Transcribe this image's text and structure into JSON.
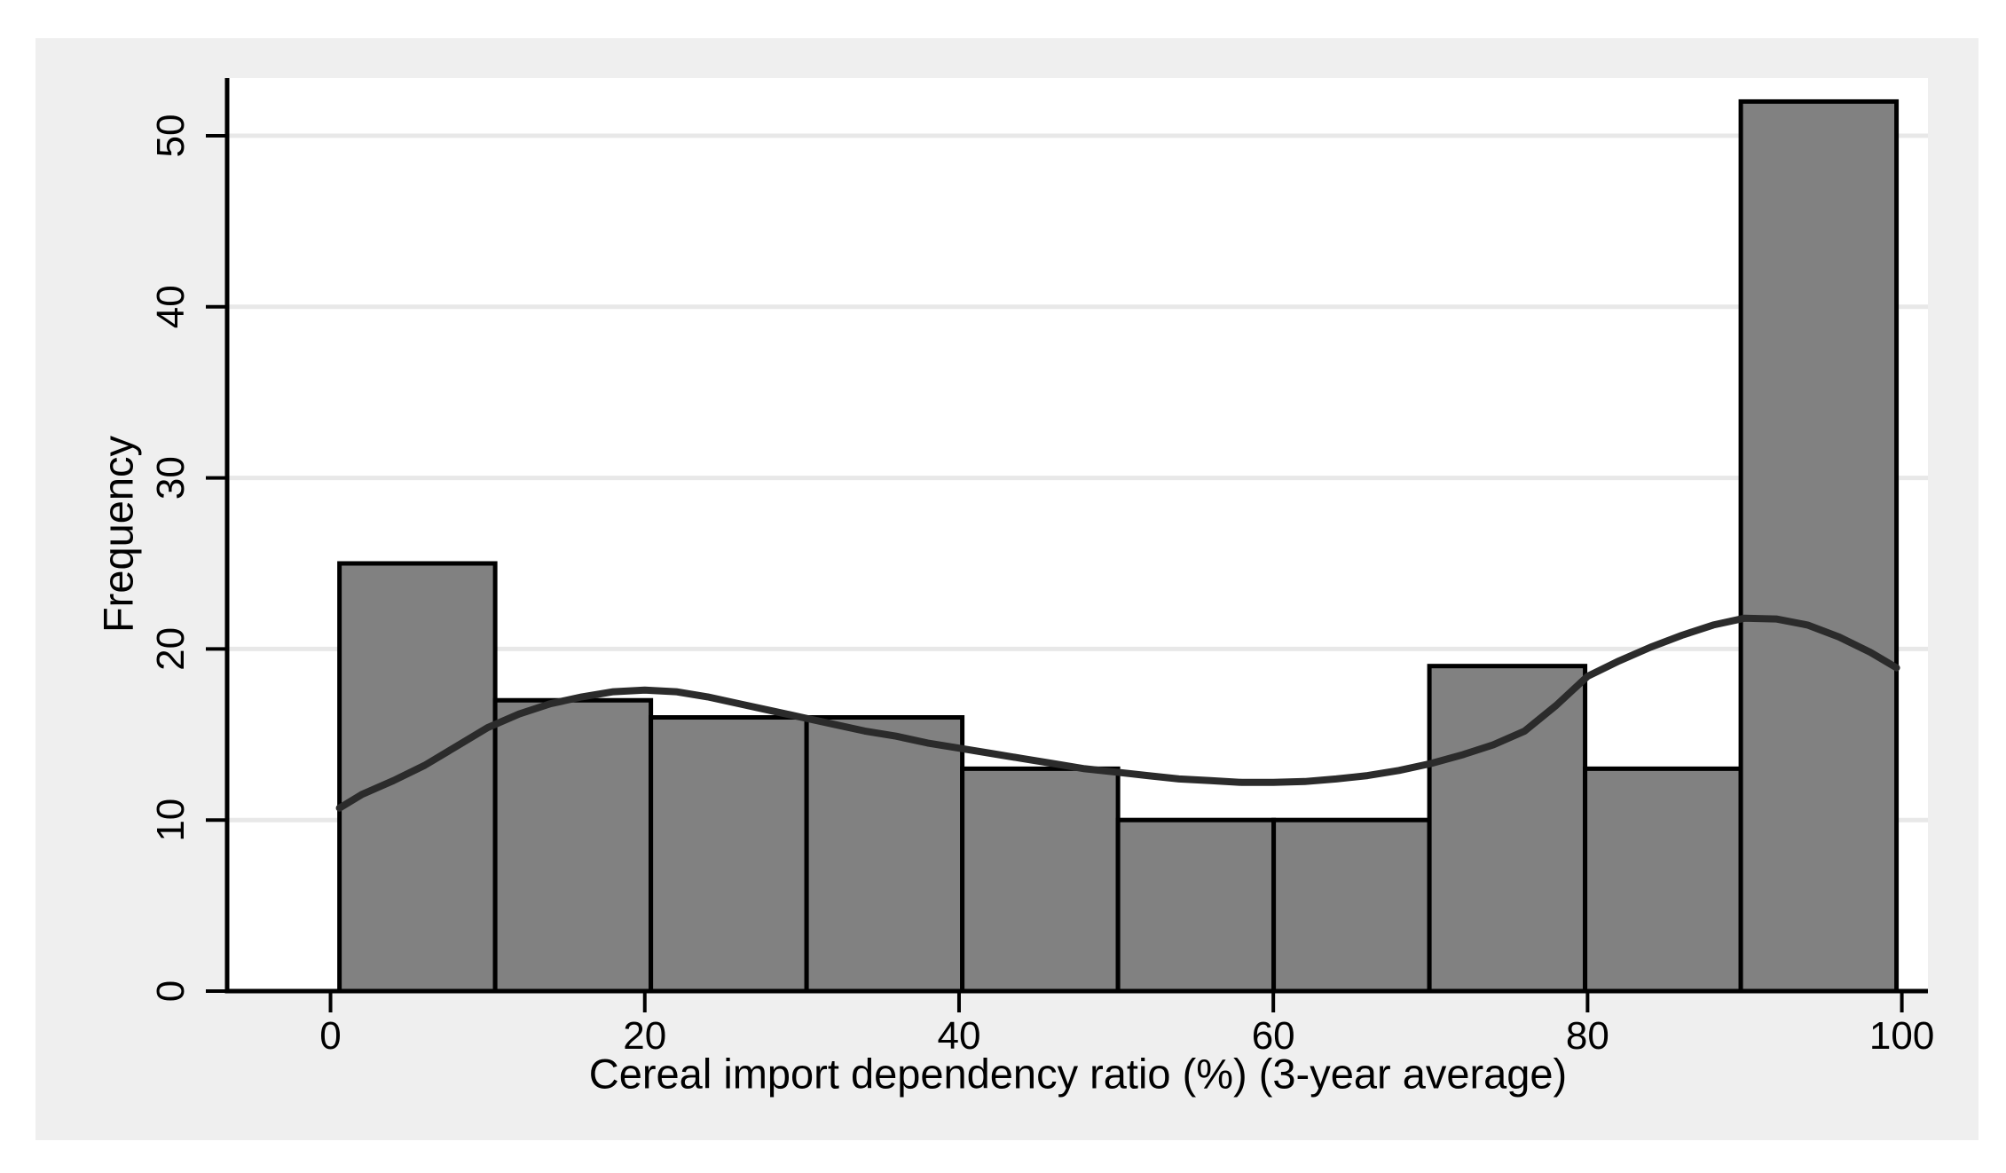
{
  "figure": {
    "kind": "stata-style histogram with kernel density overlay"
  },
  "chart_data": {
    "type": "bar",
    "subtype": "histogram_with_density",
    "title": "",
    "xlabel": "Cereal import dependency ratio (%) (3-year average)",
    "ylabel": "Frequency",
    "x_ticks": [
      0,
      20,
      40,
      60,
      80,
      100
    ],
    "y_ticks": [
      0,
      10,
      20,
      30,
      40,
      50
    ],
    "xlim": [
      -6.58,
      101.66
    ],
    "ylim": [
      0,
      53.37
    ],
    "grid": "horizontal-light",
    "legend": "none",
    "bins": {
      "start": 0.57,
      "width": 9.909,
      "counts": [
        25,
        17,
        16,
        16,
        13,
        10,
        10,
        19,
        13,
        52
      ]
    },
    "density_curve": [
      [
        0.57,
        10.7
      ],
      [
        2,
        11.5
      ],
      [
        4,
        12.3
      ],
      [
        6,
        13.2
      ],
      [
        8,
        14.3
      ],
      [
        10,
        15.4
      ],
      [
        12,
        16.2
      ],
      [
        14,
        16.8
      ],
      [
        16,
        17.2
      ],
      [
        18,
        17.5
      ],
      [
        20,
        17.6
      ],
      [
        22,
        17.5
      ],
      [
        24,
        17.2
      ],
      [
        26,
        16.8
      ],
      [
        28,
        16.4
      ],
      [
        30,
        16.0
      ],
      [
        32,
        15.6
      ],
      [
        34,
        15.2
      ],
      [
        36,
        14.9
      ],
      [
        38,
        14.5
      ],
      [
        40,
        14.2
      ],
      [
        42,
        13.9
      ],
      [
        44,
        13.6
      ],
      [
        46,
        13.3
      ],
      [
        48,
        13.0
      ],
      [
        50,
        12.8
      ],
      [
        52,
        12.6
      ],
      [
        54,
        12.4
      ],
      [
        56,
        12.3
      ],
      [
        58,
        12.2
      ],
      [
        60,
        12.2
      ],
      [
        62,
        12.25
      ],
      [
        64,
        12.4
      ],
      [
        66,
        12.6
      ],
      [
        68,
        12.9
      ],
      [
        70,
        13.3
      ],
      [
        72,
        13.8
      ],
      [
        74,
        14.4
      ],
      [
        76,
        15.2
      ],
      [
        78,
        16.7
      ],
      [
        80,
        18.4
      ],
      [
        82,
        19.3
      ],
      [
        84,
        20.1
      ],
      [
        86,
        20.8
      ],
      [
        88,
        21.4
      ],
      [
        90,
        21.8
      ],
      [
        92,
        21.75
      ],
      [
        94,
        21.4
      ],
      [
        96,
        20.7
      ],
      [
        98,
        19.8
      ],
      [
        99.66,
        18.9
      ]
    ],
    "colors": {
      "panel_bg": "#efefef",
      "plot_bg": "#ffffff",
      "grid": "#e8e8e8",
      "bar_fill": "#818181",
      "bar_border": "#000000",
      "density": "#2b2b2b",
      "axis": "#000000",
      "text": "#000000"
    }
  }
}
